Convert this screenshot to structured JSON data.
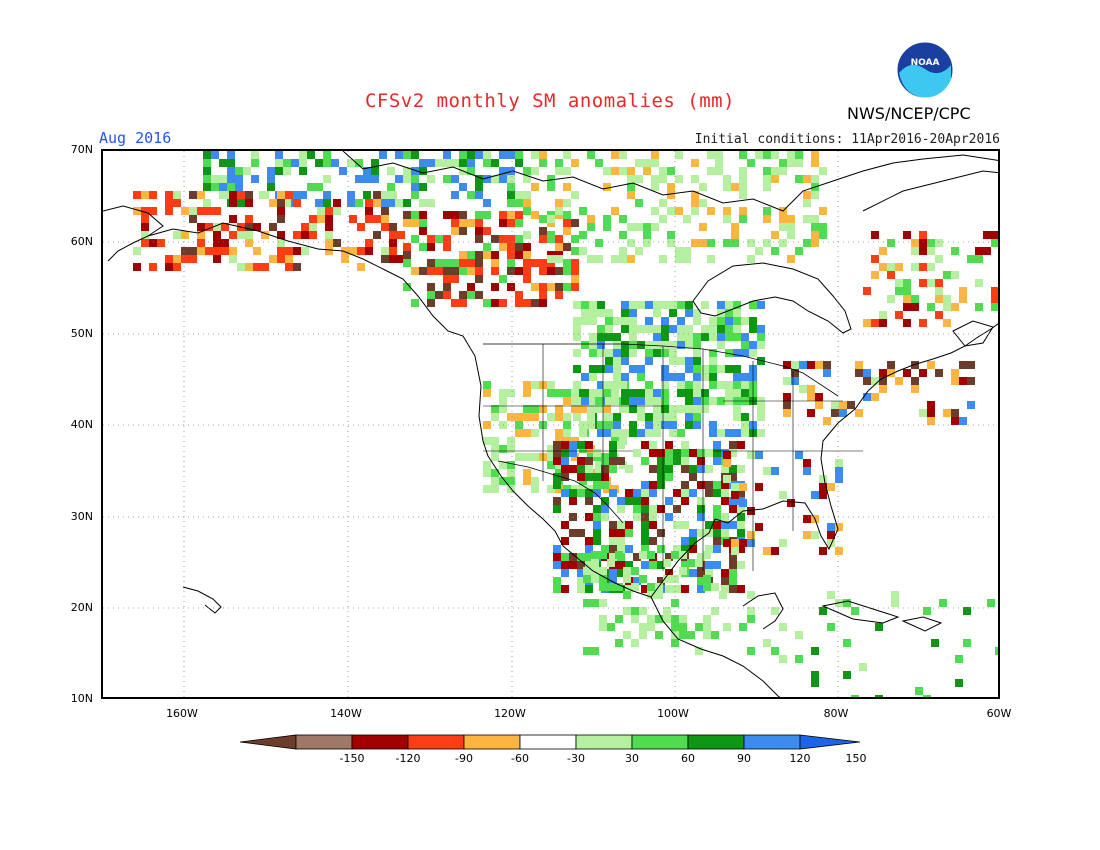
{
  "header": {
    "title": "CFSv2 monthly SM anomalies (mm)",
    "period": "Aug 2016",
    "initial_conditions": "Initial conditions: 11Apr2016-20Apr2016",
    "agency": "NWS/NCEP/CPC",
    "logo_text": "NOAA"
  },
  "map": {
    "lat_labels": [
      "70N",
      "60N",
      "50N",
      "40N",
      "30N",
      "20N",
      "10N"
    ],
    "lon_labels": [
      "160W",
      "140W",
      "120W",
      "100W",
      "80W",
      "60W"
    ],
    "lat_range": [
      10,
      70
    ],
    "lon_range": [
      -170,
      -60
    ]
  },
  "legend": {
    "labels": [
      "-150",
      "-120",
      "-90",
      "-60",
      "-30",
      "30",
      "60",
      "90",
      "120",
      "150"
    ],
    "colors": [
      "#6b3d2a",
      "#a07868",
      "#a00000",
      "#ff3c14",
      "#fbb540",
      "#ffffff",
      "#b4f0a0",
      "#50dc50",
      "#0f9614",
      "#3c8cf0",
      "#1e64e6"
    ]
  },
  "anomaly_classes": {
    "brown": "#6b3d2a",
    "darkred": "#a00000",
    "red": "#ff3c14",
    "orange": "#fbb540",
    "lightgreen": "#b4f0a0",
    "green": "#50dc50",
    "darkgreen": "#0f9614",
    "blue": "#3c8cf0"
  }
}
